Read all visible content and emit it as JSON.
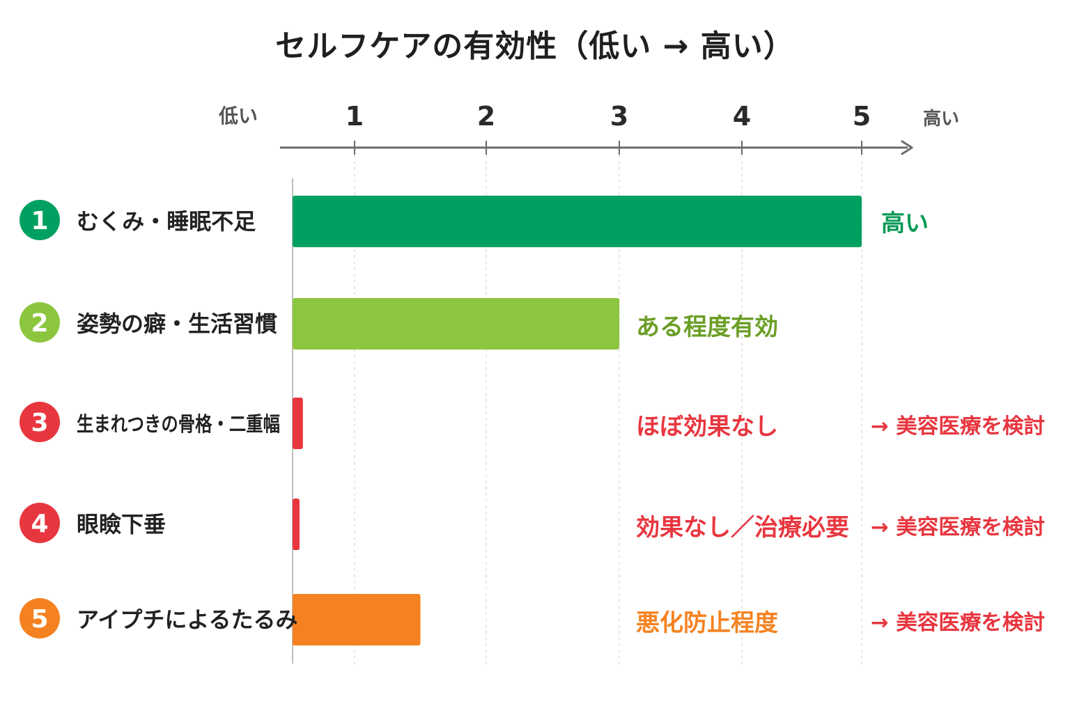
{
  "chart_data": {
    "type": "bar",
    "orientation": "horizontal",
    "title": "セルフケアの有効性（低い → 高い）",
    "axis": {
      "low_label": "低い",
      "high_label": "高い",
      "ticks": [
        "1",
        "2",
        "3",
        "4",
        "5"
      ],
      "xlim": [
        0.4,
        5.4
      ],
      "grid": true
    },
    "categories": [
      {
        "number": "1",
        "label": "むくみ・睡眠不足",
        "value": 5,
        "color": "#00a160",
        "effect_label": "高い",
        "effect_color": "#0a9a55",
        "note": ""
      },
      {
        "number": "2",
        "label": "姿勢の癖・生活習慣",
        "value": 3,
        "color": "#8cc63f",
        "effect_label": "ある程度有効",
        "effect_color": "#6a9e25",
        "note": ""
      },
      {
        "number": "3",
        "label": "生まれつきの骨格・二重幅",
        "value": 0.5,
        "color": "#e8363f",
        "effect_label": "ほぼ効果なし",
        "effect_color": "#e8363f",
        "note": "→ 美容医療を検討"
      },
      {
        "number": "4",
        "label": "眼瞼下垂",
        "value": 0.45,
        "color": "#e8363f",
        "effect_label": "効果なし／治療必要",
        "effect_color": "#e8363f",
        "note": "→ 美容医療を検討"
      },
      {
        "number": "5",
        "label": "アイプチによるたるみ",
        "value": 1.5,
        "color": "#f58220",
        "effect_label": "悪化防止程度",
        "effect_color": "#f58220",
        "note": "→ 美容医療を検討"
      }
    ],
    "note_color": "#e8363f"
  }
}
